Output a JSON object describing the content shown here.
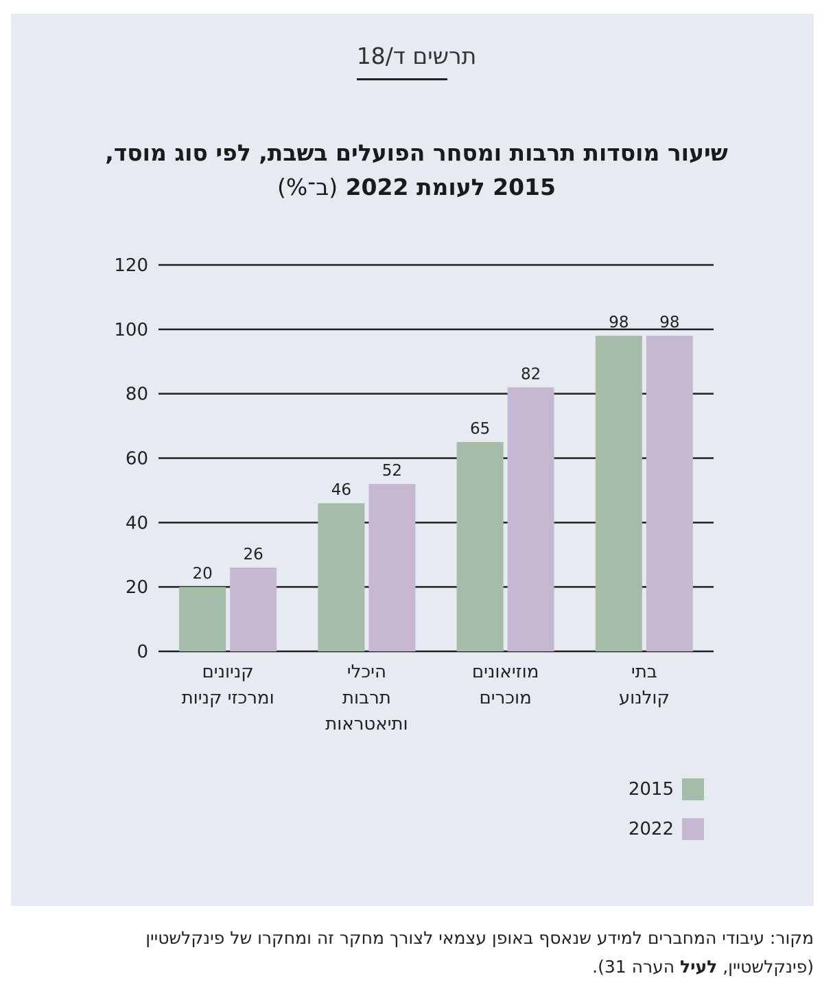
{
  "figure_label": "תרשים ד/18",
  "title": {
    "line1": "שיעור מוסדות תרבות ומסחר הפועלים בשבת, לפי סוג מוסד,",
    "line2_bold": "2015 לעומת 2022",
    "line2_unit": "(ב־%)"
  },
  "colors": {
    "2015": "#a3bda9",
    "2022": "#c7b8d1",
    "panel": "#e6ebf1"
  },
  "chart_data": {
    "type": "bar",
    "categories": [
      [
        "קניונים",
        "ומרכזי קניות"
      ],
      [
        "היכלי",
        "תרבות",
        "ותיאטראות"
      ],
      [
        "מוזיאונים",
        "מוכרים"
      ],
      [
        "בתי",
        "קולנוע"
      ]
    ],
    "series": [
      {
        "name": "2015",
        "values": [
          20,
          46,
          65,
          98
        ]
      },
      {
        "name": "2022",
        "values": [
          26,
          52,
          82,
          98
        ]
      }
    ],
    "ylim": [
      0,
      120
    ],
    "yticks": [
      0,
      20,
      40,
      60,
      80,
      100,
      120
    ],
    "grid": true,
    "legend": "bottom-right",
    "data_labels": true
  },
  "legend": [
    {
      "label": "2015"
    },
    {
      "label": "2022"
    }
  ],
  "source": {
    "line1": "מקור: עיבודי המחברים למידע שנאסף באופן עצמאי לצורך מחקר זה ומחקרו של פינקלשטיין",
    "line2_a": "(פינקלשטיין, ",
    "line2_bold": "לעיל",
    "line2_b": " הערה 31)."
  }
}
